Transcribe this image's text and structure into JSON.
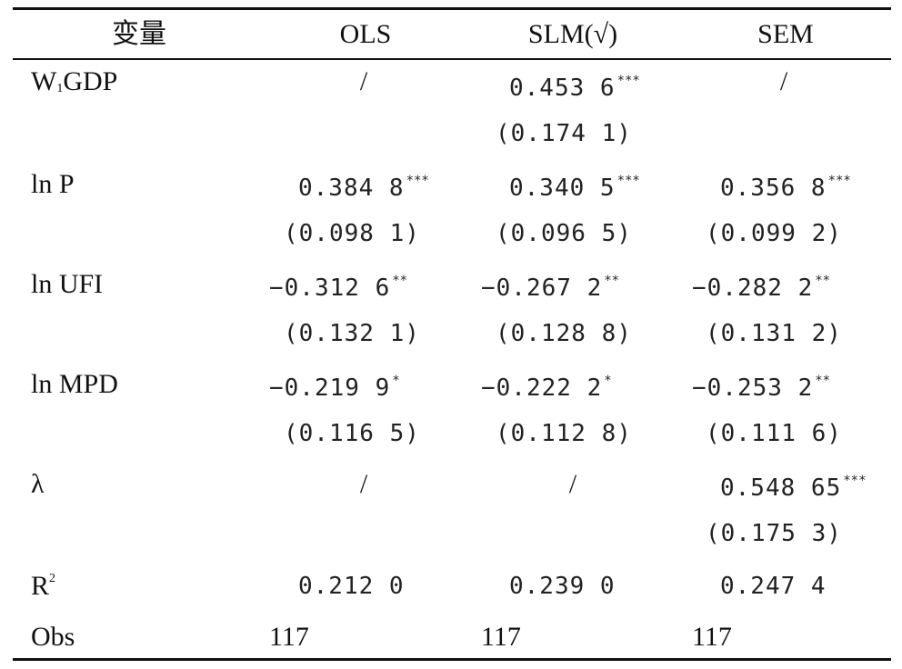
{
  "headers": {
    "var": "变量",
    "ols": "OLS",
    "slm": "SLM(√)",
    "sem": "SEM"
  },
  "rows": {
    "w1gdp": {
      "label": "W",
      "label_sub": "1",
      "label_rest": "GDP",
      "ols": "/",
      "slm": "0.453 6",
      "slm_sig": "***",
      "slm_se": "(0.174 1)",
      "sem": "/"
    },
    "lnp": {
      "label": "ln P",
      "ols": "0.384 8",
      "ols_sig": "***",
      "ols_se": "(0.098 1)",
      "slm": "0.340 5",
      "slm_sig": "***",
      "slm_se": "(0.096 5)",
      "sem": "0.356 8",
      "sem_sig": "***",
      "sem_se": "(0.099 2)"
    },
    "lnufi": {
      "label": "ln UFI",
      "ols": "−0.312 6",
      "ols_sig": "**",
      "ols_se": "(0.132 1)",
      "slm": "−0.267 2",
      "slm_sig": "**",
      "slm_se": "(0.128 8)",
      "sem": "−0.282 2",
      "sem_sig": "**",
      "sem_se": "(0.131 2)"
    },
    "lnmpd": {
      "label": "ln MPD",
      "ols": "−0.219 9",
      "ols_sig": "*",
      "ols_se": "(0.116 5)",
      "slm": "−0.222 2",
      "slm_sig": "*",
      "slm_se": "(0.112 8)",
      "sem": "−0.253 2",
      "sem_sig": "**",
      "sem_se": "(0.111 6)"
    },
    "lambda": {
      "label": "λ",
      "ols": "/",
      "slm": "/",
      "sem": "0.548 65",
      "sem_sig": "***",
      "sem_se": "(0.175 3)"
    },
    "r2": {
      "label": "R",
      "label_sup": "2",
      "ols": "0.212 0",
      "slm": "0.239 0",
      "sem": "0.247 4"
    },
    "obs": {
      "label": "Obs",
      "ols": "117",
      "slm": "117",
      "sem": "117"
    }
  }
}
